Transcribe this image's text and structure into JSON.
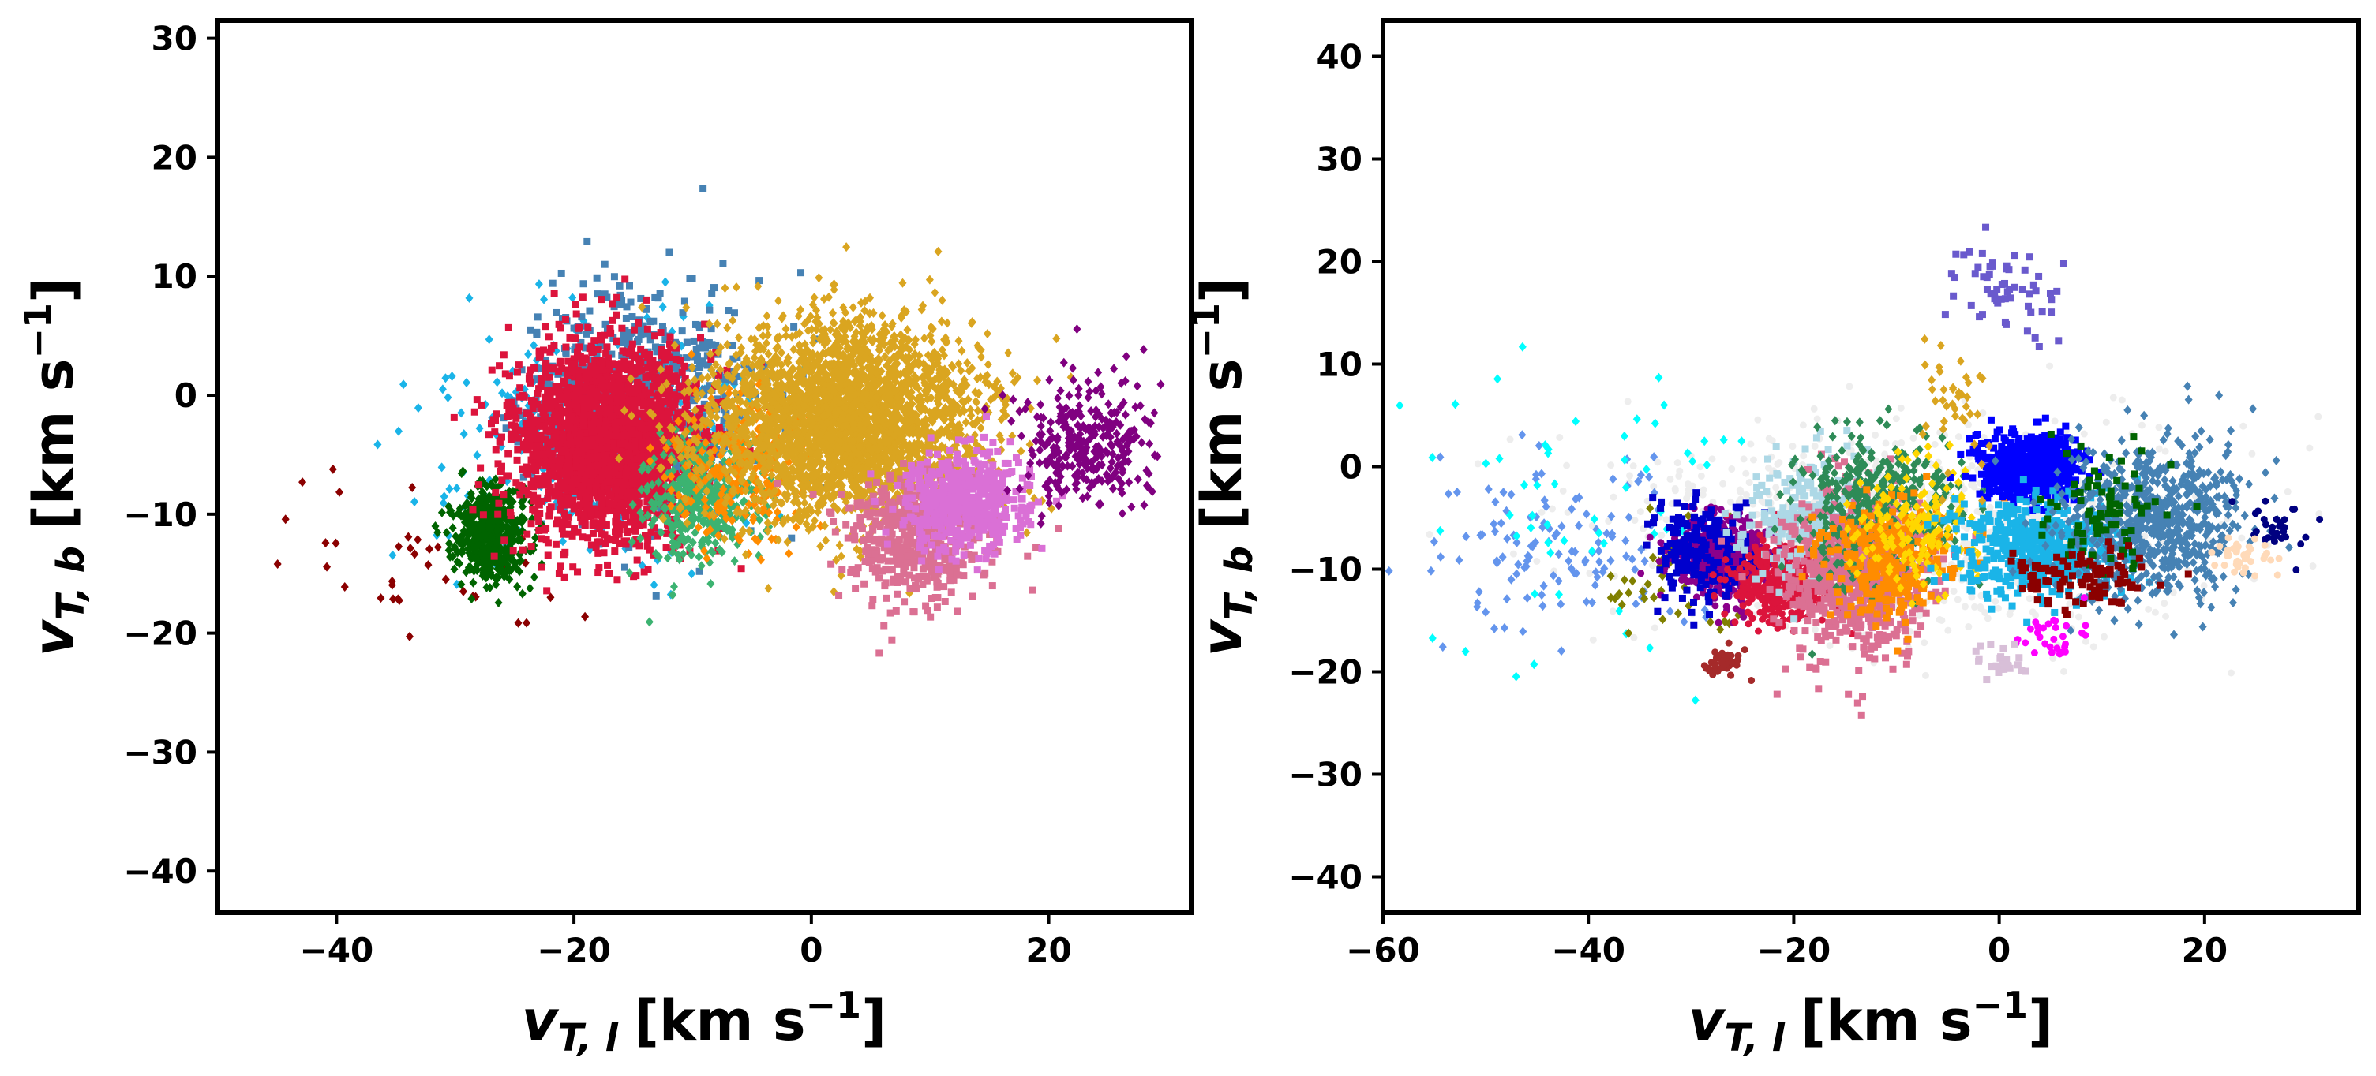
{
  "chart_data": [
    {
      "type": "scatter",
      "xlabel": "v_{T,l} [km s^-1]",
      "ylabel": "v_{T,b} [km s^-1]",
      "xlabel_parts": {
        "sym": "v",
        "sub": "T, l",
        "unit": "[km s",
        "exp": "−1",
        "close": "]"
      },
      "ylabel_parts": {
        "sym": "v",
        "sub": "T, b",
        "unit": "[km s",
        "exp": "−1",
        "close": "]"
      },
      "xlim": [
        -50,
        32
      ],
      "ylim": [
        -43.5,
        31.5
      ],
      "xticks": [
        -40,
        -20,
        0,
        20
      ],
      "yticks": [
        -40,
        -30,
        -20,
        -10,
        0,
        10,
        20,
        30
      ],
      "xtick_labels": [
        "−40",
        "−20",
        "0",
        "20"
      ],
      "ytick_labels": [
        "−40",
        "−30",
        "−20",
        "−10",
        "0",
        "10",
        "20",
        "30"
      ],
      "series": [
        {
          "name": "darkred",
          "color": "#8b0000",
          "marker": "diamond",
          "n": 40,
          "cx": -33,
          "cy": -14,
          "sx": 7,
          "sy": 4
        },
        {
          "name": "deepskyblue",
          "color": "#1ab4e8",
          "marker": "diamond",
          "n": 320,
          "cx": -18,
          "cy": -3,
          "sx": 7,
          "sy": 5
        },
        {
          "name": "steelblue",
          "color": "#4682b4",
          "marker": "square",
          "n": 700,
          "cx": -14,
          "cy": -1,
          "sx": 5,
          "sy": 5
        },
        {
          "name": "darkgreen",
          "color": "#006400",
          "marker": "diamond",
          "n": 500,
          "cx": -27,
          "cy": -12,
          "sx": 1.6,
          "sy": 2
        },
        {
          "name": "crimson",
          "color": "#dc143c",
          "marker": "square",
          "n": 2200,
          "cx": -17,
          "cy": -4,
          "sx": 4,
          "sy": 4
        },
        {
          "name": "mediumseagreen",
          "color": "#3cb371",
          "marker": "diamond",
          "n": 400,
          "cx": -9,
          "cy": -9,
          "sx": 2.5,
          "sy": 2.5
        },
        {
          "name": "darkorange",
          "color": "#ff8c00",
          "marker": "diamond",
          "n": 250,
          "cx": -6,
          "cy": -6,
          "sx": 3,
          "sy": 3
        },
        {
          "name": "goldenrod",
          "color": "#daa520",
          "marker": "diamond",
          "n": 2800,
          "cx": 3,
          "cy": -2,
          "sx": 5.5,
          "sy": 4
        },
        {
          "name": "palevioletred",
          "color": "#db7093",
          "marker": "square",
          "n": 500,
          "cx": 9,
          "cy": -12,
          "sx": 3,
          "sy": 2.6
        },
        {
          "name": "orchid",
          "color": "#da70d6",
          "marker": "square",
          "n": 500,
          "cx": 13,
          "cy": -9,
          "sx": 2.5,
          "sy": 2
        },
        {
          "name": "purple",
          "color": "#800080",
          "marker": "diamond",
          "n": 300,
          "cx": 23,
          "cy": -4,
          "sx": 3,
          "sy": 2.5
        }
      ]
    },
    {
      "type": "scatter",
      "xlabel": "v_{T,l} [km s^-1]",
      "ylabel": "v_{T,b} [km s^-1]",
      "xlabel_parts": {
        "sym": "v",
        "sub": "T, l",
        "unit": "[km s",
        "exp": "−1",
        "close": "]"
      },
      "ylabel_parts": {
        "sym": "v",
        "sub": "T, b",
        "unit": "[km s",
        "exp": "−1",
        "close": "]"
      },
      "xlim": [
        -60,
        35
      ],
      "ylim": [
        -43.5,
        43.5
      ],
      "xticks": [
        -60,
        -40,
        -20,
        0,
        20
      ],
      "yticks": [
        -40,
        -30,
        -20,
        -10,
        0,
        10,
        20,
        30,
        40
      ],
      "xtick_labels": [
        "−60",
        "−40",
        "−20",
        "0",
        "20"
      ],
      "ytick_labels": [
        "−40",
        "−30",
        "−20",
        "−10",
        "0",
        "10",
        "20",
        "30",
        "40"
      ],
      "series": [
        {
          "name": "background",
          "color": "#d9d9d9",
          "marker": "circle",
          "n": 900,
          "cx": -8,
          "cy": -6,
          "sx": 14,
          "sy": 5
        },
        {
          "name": "cornflowerblue",
          "color": "#6495ed",
          "marker": "diamond",
          "n": 130,
          "cx": -42,
          "cy": -8,
          "sx": 7,
          "sy": 5
        },
        {
          "name": "cyan",
          "color": "#00ffff",
          "marker": "diamond",
          "n": 60,
          "cx": -40,
          "cy": -4,
          "sx": 10,
          "sy": 9
        },
        {
          "name": "olive",
          "color": "#808000",
          "marker": "diamond",
          "n": 60,
          "cx": -31,
          "cy": -11,
          "sx": 3,
          "sy": 3
        },
        {
          "name": "darkmagenta",
          "color": "#8b008b",
          "marker": "circle",
          "n": 500,
          "cx": -27,
          "cy": -9,
          "sx": 2.5,
          "sy": 2
        },
        {
          "name": "mediumblue",
          "color": "#0000cd",
          "marker": "square",
          "n": 200,
          "cx": -29,
          "cy": -8,
          "sx": 2.5,
          "sy": 2.5
        },
        {
          "name": "crimson",
          "color": "#dc143c",
          "marker": "circle",
          "n": 400,
          "cx": -21,
          "cy": -11,
          "sx": 2.5,
          "sy": 2
        },
        {
          "name": "lightblue",
          "color": "#add8e6",
          "marker": "square",
          "n": 300,
          "cx": -18,
          "cy": -5,
          "sx": 3,
          "sy": 3
        },
        {
          "name": "palevioletred",
          "color": "#db7093",
          "marker": "square",
          "n": 700,
          "cx": -14,
          "cy": -11,
          "sx": 3.5,
          "sy": 4
        },
        {
          "name": "seagreen",
          "color": "#2e8b57",
          "marker": "diamond",
          "n": 400,
          "cx": -12,
          "cy": -4,
          "sx": 4,
          "sy": 3.5
        },
        {
          "name": "darkorange",
          "color": "#ff8c00",
          "marker": "square",
          "n": 300,
          "cx": -11,
          "cy": -9,
          "sx": 3,
          "sy": 3
        },
        {
          "name": "gold",
          "color": "#ffd700",
          "marker": "diamond",
          "n": 150,
          "cx": -8,
          "cy": -6,
          "sx": 3,
          "sy": 3
        },
        {
          "name": "blue",
          "color": "#0000ff",
          "marker": "square",
          "n": 600,
          "cx": 3,
          "cy": 0,
          "sx": 2.5,
          "sy": 1.5
        },
        {
          "name": "deepskyblue",
          "color": "#1ab4e8",
          "marker": "square",
          "n": 500,
          "cx": 4,
          "cy": -8,
          "sx": 4,
          "sy": 2.5
        },
        {
          "name": "steelblue",
          "color": "#4682b4",
          "marker": "diamond",
          "n": 700,
          "cx": 15,
          "cy": -5,
          "sx": 4.5,
          "sy": 4
        },
        {
          "name": "darkgreen",
          "color": "#006400",
          "marker": "square",
          "n": 80,
          "cx": 10,
          "cy": -4,
          "sx": 3,
          "sy": 3
        },
        {
          "name": "maroon",
          "color": "#8b0000",
          "marker": "square",
          "n": 100,
          "cx": 8,
          "cy": -11,
          "sx": 3.5,
          "sy": 1.3
        },
        {
          "name": "slateblue",
          "color": "#6a5acd",
          "marker": "square",
          "n": 60,
          "cx": 1,
          "cy": 17,
          "sx": 3,
          "sy": 2
        },
        {
          "name": "goldenrod",
          "color": "#daa520",
          "marker": "diamond",
          "n": 40,
          "cx": -4,
          "cy": 5,
          "sx": 1.5,
          "sy": 4
        },
        {
          "name": "magenta",
          "color": "#ff00ff",
          "marker": "circle",
          "n": 30,
          "cx": 5,
          "cy": -16,
          "sx": 2,
          "sy": 1.5
        },
        {
          "name": "thistle",
          "color": "#d8bfd8",
          "marker": "square",
          "n": 25,
          "cx": 0,
          "cy": -19,
          "sx": 1.5,
          "sy": 1
        },
        {
          "name": "navy",
          "color": "#000080",
          "marker": "circle",
          "n": 30,
          "cx": 27,
          "cy": -6,
          "sx": 1.5,
          "sy": 1.5
        },
        {
          "name": "peachpuff",
          "color": "#ffdab9",
          "marker": "circle",
          "n": 40,
          "cx": 24,
          "cy": -9,
          "sx": 1.5,
          "sy": 1
        },
        {
          "name": "brown",
          "color": "#a52a2a",
          "marker": "circle",
          "n": 40,
          "cx": -27,
          "cy": -19,
          "sx": 1,
          "sy": 0.8
        }
      ]
    }
  ]
}
